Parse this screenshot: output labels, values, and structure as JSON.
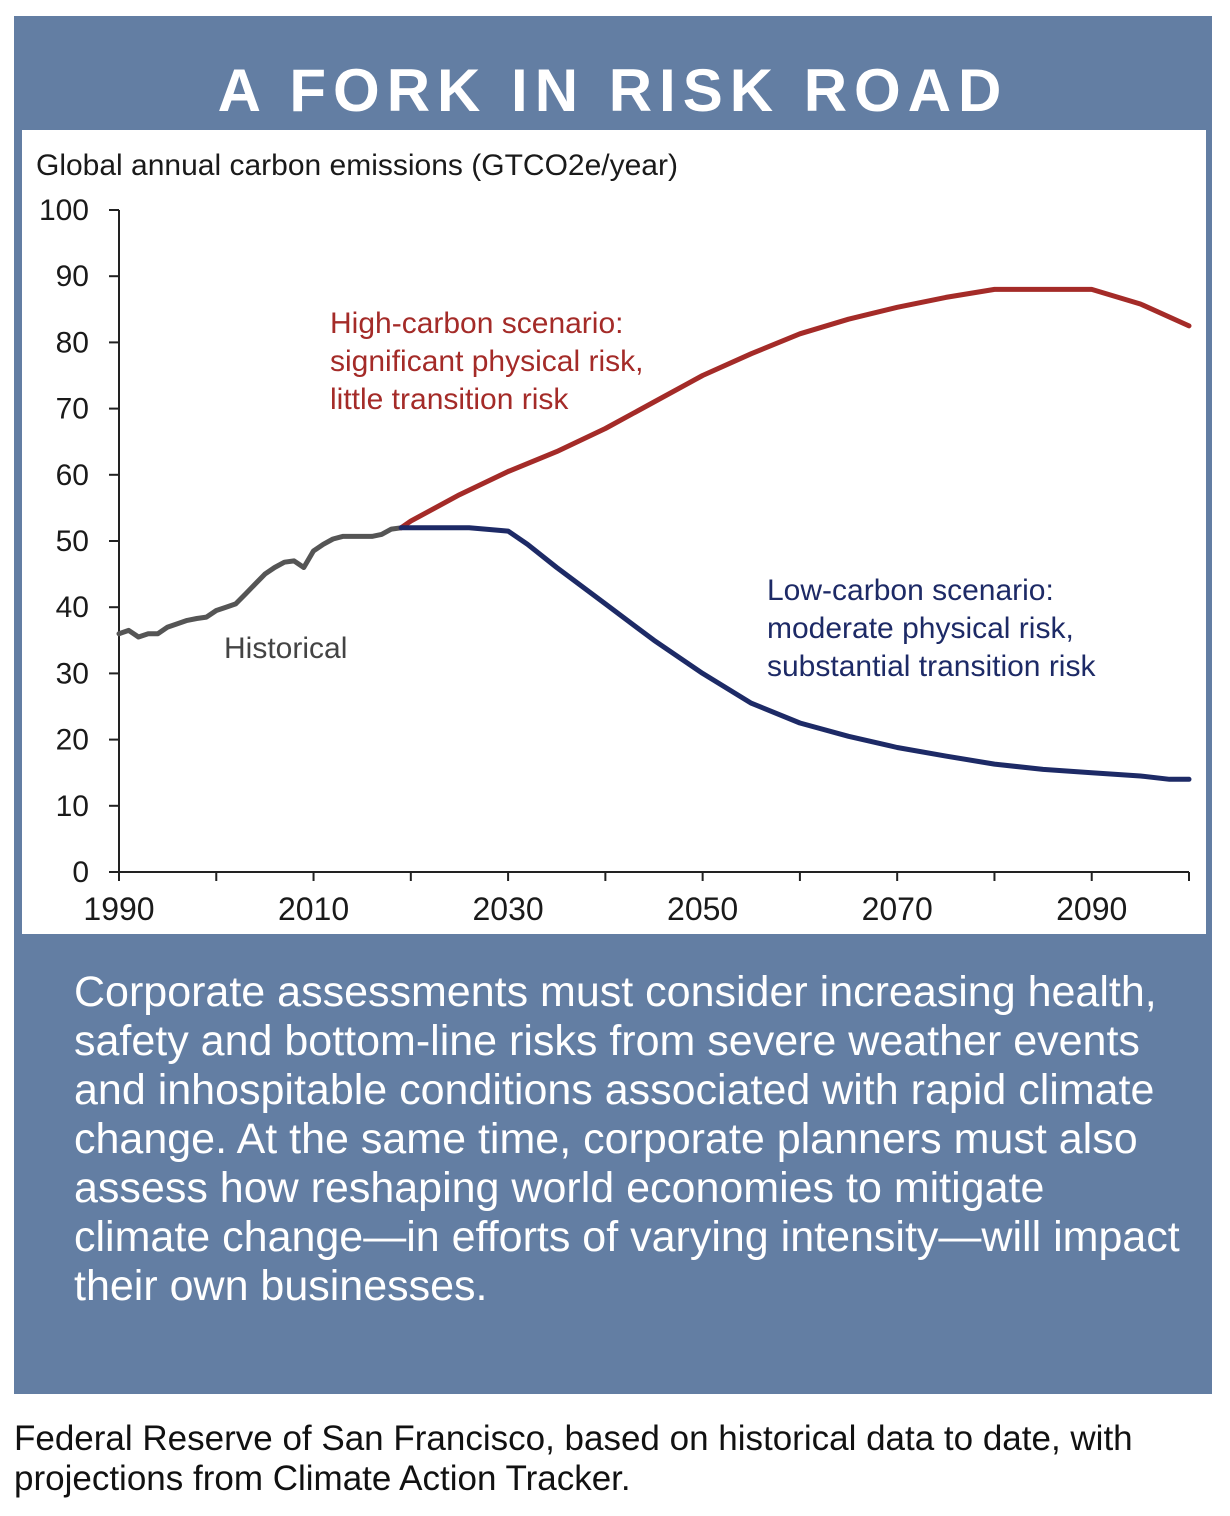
{
  "title": "A FORK IN RISK ROAD",
  "body": "Corporate assessments must consider increasing health, safety and bottom-line risks from severe weather events and inhospitable conditions associated with rapid climate change. At the same time, corporate planners must also assess how reshaping world economies to mitigate climate change—in efforts of varying intensity—will impact their own businesses.",
  "source": "Federal Reserve of San Francisco, based on historical data to date, with projections from Climate Action Tracker.",
  "colors": {
    "panel": "#637ea3",
    "historical": "#555555",
    "high_carbon": "#a42b28",
    "low_carbon": "#1d2a66",
    "high_label": "#a42b28",
    "low_label": "#1d2a66",
    "historical_label": "#444444"
  },
  "chart_data": {
    "type": "line",
    "ylabel": "Global annual carbon emissions (GTCO2e/year)",
    "xlabel": "",
    "xlim": [
      1990,
      2100
    ],
    "ylim": [
      0,
      100
    ],
    "x_ticks": [
      1990,
      2010,
      2030,
      2050,
      2070,
      2090
    ],
    "y_ticks": [
      0,
      10,
      20,
      30,
      40,
      50,
      60,
      70,
      80,
      90,
      100
    ],
    "x_tick_labels": [
      "1990",
      "2010",
      "2030",
      "2050",
      "2070",
      "2090"
    ],
    "y_tick_labels": [
      "0",
      "10",
      "20",
      "30",
      "40",
      "50",
      "60",
      "70",
      "80",
      "90",
      "100"
    ],
    "annotations": {
      "historical": [
        "Historical"
      ],
      "high": [
        "High-carbon scenario:",
        "significant physical risk,",
        "little transition risk"
      ],
      "low": [
        "Low-carbon scenario:",
        "moderate physical risk,",
        "substantial transition risk"
      ]
    },
    "series": [
      {
        "key": "historical",
        "x": [
          1990,
          1991,
          1992,
          1993,
          1994,
          1995,
          1996,
          1997,
          1998,
          1999,
          2000,
          2001,
          2002,
          2003,
          2004,
          2005,
          2006,
          2007,
          2008,
          2009,
          2010,
          2011,
          2012,
          2013,
          2014,
          2015,
          2016,
          2017,
          2018,
          2019
        ],
        "y": [
          36,
          36.5,
          35.5,
          36,
          36,
          37,
          37.5,
          38,
          38.3,
          38.5,
          39.5,
          40,
          40.5,
          42,
          43.5,
          45,
          46,
          46.8,
          47,
          46,
          48.5,
          49.5,
          50.3,
          50.7,
          50.7,
          50.7,
          50.7,
          51,
          51.8,
          52
        ]
      },
      {
        "key": "high_carbon",
        "x": [
          2019,
          2020,
          2025,
          2030,
          2035,
          2040,
          2045,
          2050,
          2055,
          2060,
          2065,
          2070,
          2075,
          2080,
          2085,
          2090,
          2095,
          2100
        ],
        "y": [
          52,
          53,
          57,
          60.5,
          63.5,
          67,
          71,
          75,
          78.3,
          81.3,
          83.5,
          85.3,
          86.8,
          88,
          88,
          88,
          85.8,
          82.5
        ]
      },
      {
        "key": "low_carbon",
        "x": [
          2019,
          2022,
          2026,
          2030,
          2032,
          2035,
          2040,
          2045,
          2050,
          2055,
          2060,
          2065,
          2070,
          2075,
          2080,
          2085,
          2090,
          2095,
          2098,
          2100
        ],
        "y": [
          52,
          52,
          52,
          51.5,
          49.5,
          46,
          40.5,
          35,
          30,
          25.5,
          22.5,
          20.5,
          18.8,
          17.5,
          16.3,
          15.5,
          15,
          14.5,
          14,
          14
        ]
      }
    ]
  }
}
